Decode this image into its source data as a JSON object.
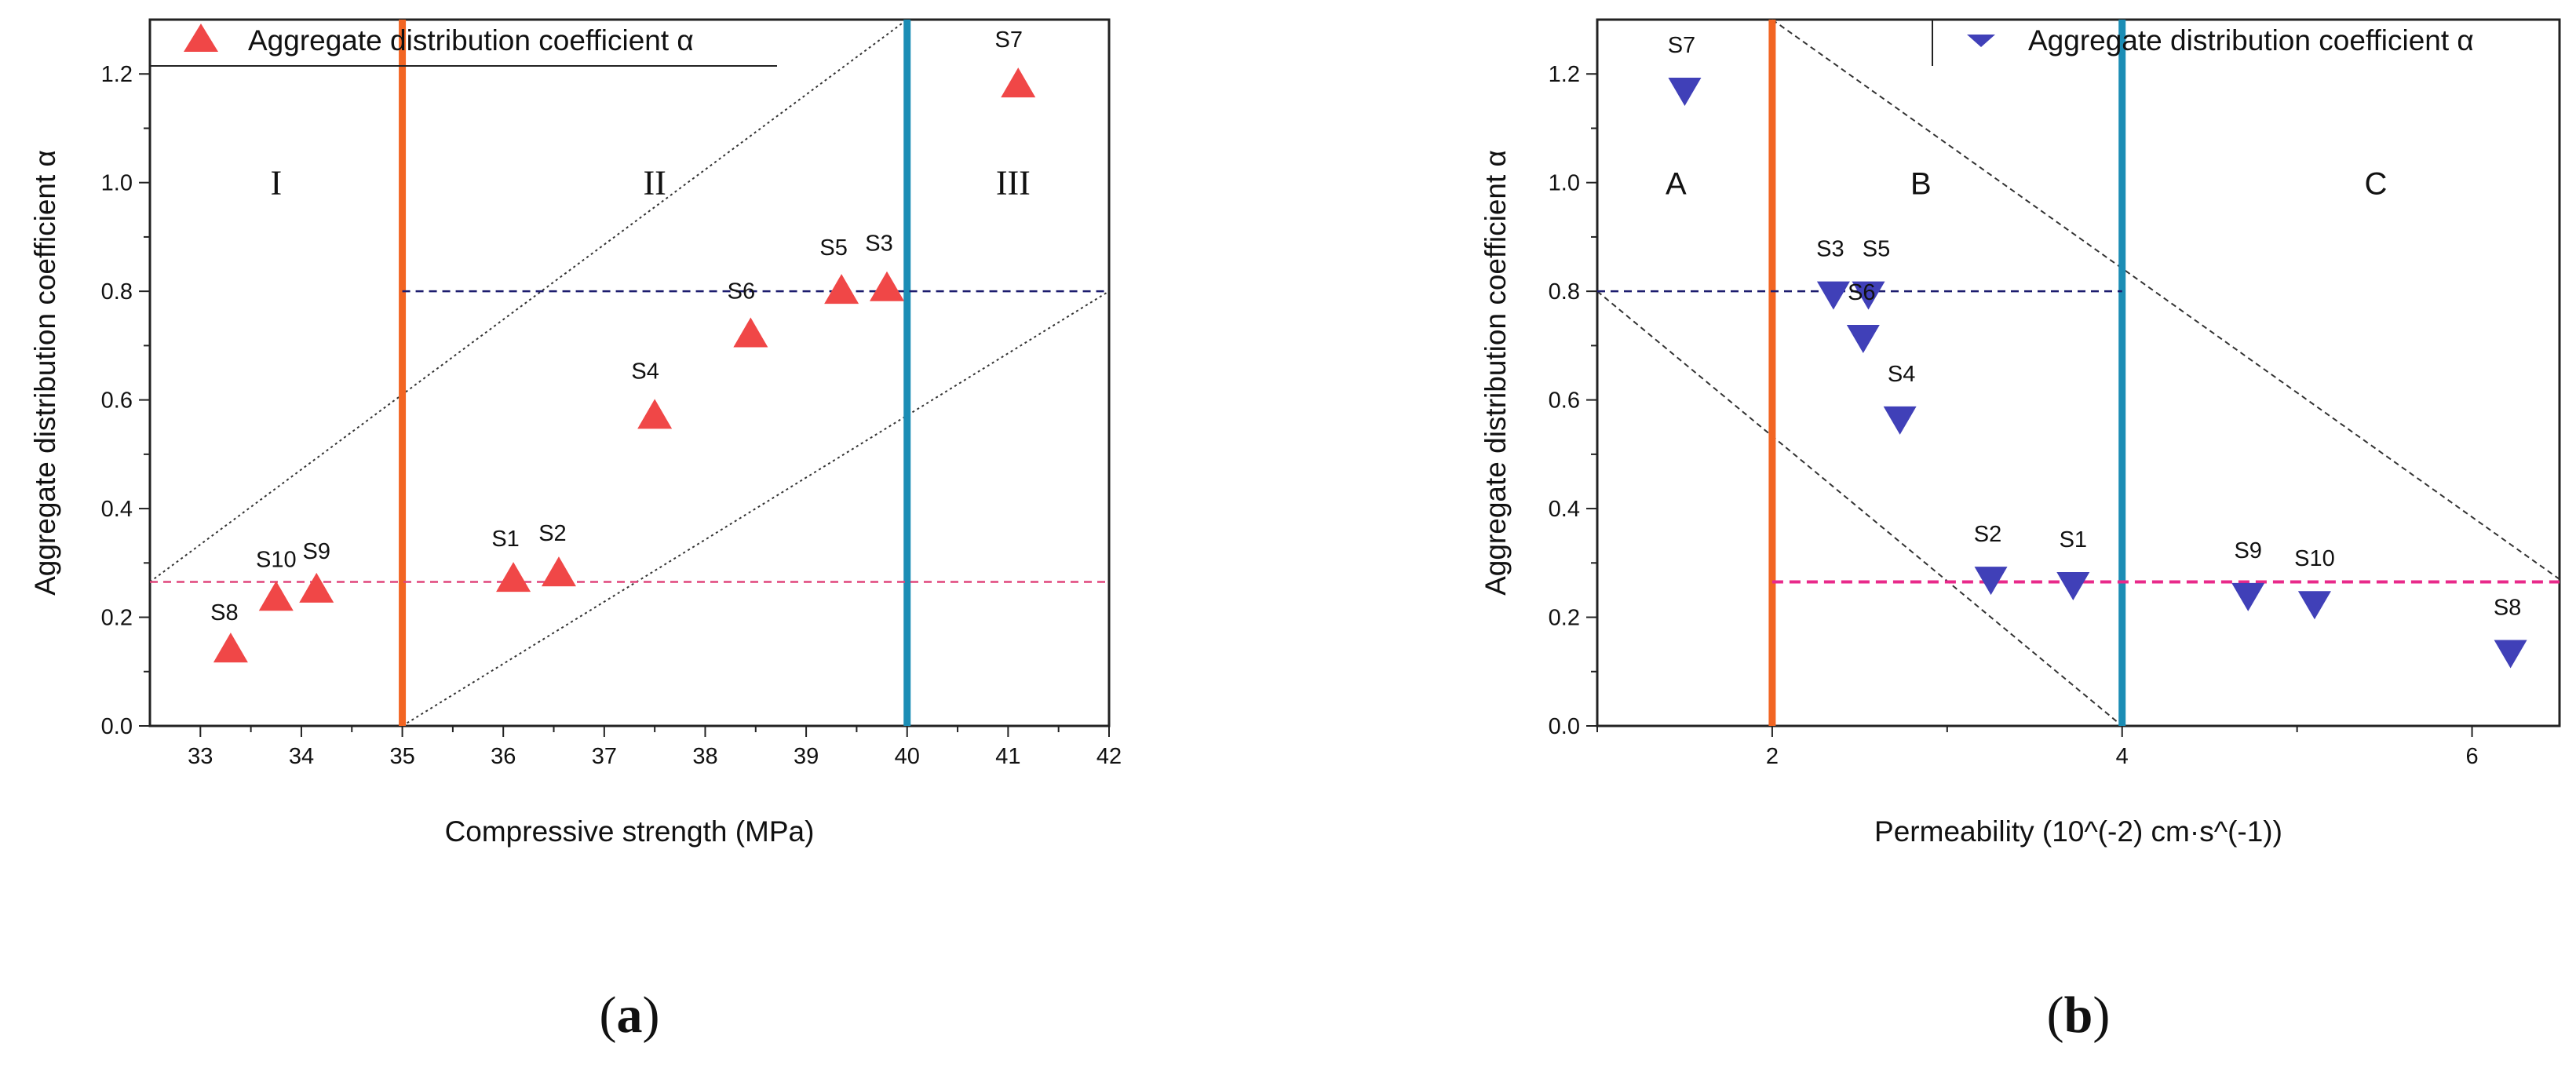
{
  "chart_data": [
    {
      "type": "scatter",
      "panel": "(a)",
      "panel_open": "(",
      "panel_letter": "a",
      "panel_close": ")",
      "title": "",
      "xlabel": "Compressive strength (MPa)",
      "ylabel": "Aggregate distribution coefficient α",
      "xlim": [
        32.5,
        42
      ],
      "ylim": [
        0,
        1.3
      ],
      "xticks": [
        33,
        34,
        35,
        36,
        37,
        38,
        39,
        40,
        41,
        42
      ],
      "xtick_labels": [
        "33",
        "34",
        "35",
        "36",
        "37",
        "38",
        "39",
        "40",
        "41",
        "42"
      ],
      "yticks": [
        0.0,
        0.2,
        0.4,
        0.6,
        0.8,
        1.0,
        1.2
      ],
      "ytick_labels": [
        "0.0",
        "0.2",
        "0.4",
        "0.6",
        "0.8",
        "1.0",
        "1.2"
      ],
      "legend": {
        "label": "Aggregate distribution coefficient α",
        "marker": "triangle-up",
        "color": "#f04747"
      },
      "series": [
        {
          "name": "Aggregate distribution coefficient α",
          "marker": "triangle-up",
          "color": "#f04747",
          "points": [
            {
              "label": "S8",
              "x": 33.3,
              "y": 0.14
            },
            {
              "label": "S10",
              "x": 33.75,
              "y": 0.235
            },
            {
              "label": "S9",
              "x": 34.15,
              "y": 0.25
            },
            {
              "label": "S1",
              "x": 36.1,
              "y": 0.27
            },
            {
              "label": "S2",
              "x": 36.55,
              "y": 0.28
            },
            {
              "label": "S4",
              "x": 37.5,
              "y": 0.57
            },
            {
              "label": "S6",
              "x": 38.45,
              "y": 0.72
            },
            {
              "label": "S5",
              "x": 39.35,
              "y": 0.8
            },
            {
              "label": "S3",
              "x": 39.8,
              "y": 0.805
            },
            {
              "label": "S7",
              "x": 41.1,
              "y": 1.18
            }
          ]
        }
      ],
      "vlines": [
        {
          "x": 35,
          "color": "#f26522"
        },
        {
          "x": 40,
          "color": "#1b8db5"
        }
      ],
      "hlines": [
        {
          "y": 0.8,
          "x_from": 35,
          "x_to": 42,
          "color": "#1c1c6e",
          "style": "dashed"
        },
        {
          "y": 0.265,
          "x_from": 32.5,
          "x_to": 42,
          "color": "#e0457b",
          "style": "dashed"
        }
      ],
      "guide_lines": [
        {
          "from": [
            32.5,
            0.265
          ],
          "to": [
            40,
            1.3
          ]
        },
        {
          "from": [
            35,
            0.0
          ],
          "to": [
            42,
            0.8
          ]
        }
      ],
      "regions": [
        {
          "label": "I",
          "x": 33.75,
          "y": 1.0
        },
        {
          "label": "II",
          "x": 37.5,
          "y": 1.0
        },
        {
          "label": "III",
          "x": 41.05,
          "y": 1.0
        }
      ]
    },
    {
      "type": "scatter",
      "panel": "(b)",
      "panel_open": "(",
      "panel_letter": "b",
      "panel_close": ")",
      "title": "",
      "xlabel": "Permeability (10^(-2) cm·s^(-1))",
      "ylabel": "Aggregate distribution coefficient α",
      "xlim": [
        1,
        6.5
      ],
      "ylim": [
        0,
        1.3
      ],
      "xticks": [
        2,
        4,
        6
      ],
      "xtick_labels": [
        "2",
        "4",
        "6"
      ],
      "xticks_minor": [
        1,
        3,
        5
      ],
      "yticks": [
        0.0,
        0.2,
        0.4,
        0.6,
        0.8,
        1.0,
        1.2
      ],
      "ytick_labels": [
        "0.0",
        "0.2",
        "0.4",
        "0.6",
        "0.8",
        "1.0",
        "1.2"
      ],
      "legend": {
        "label": "Aggregate distribution coefficient α",
        "marker": "triangle-down",
        "color": "#4040b8"
      },
      "series": [
        {
          "name": "Aggregate distribution coefficient α",
          "marker": "triangle-down",
          "color": "#4040b8",
          "points": [
            {
              "label": "S7",
              "x": 1.5,
              "y": 1.17
            },
            {
              "label": "S3",
              "x": 2.35,
              "y": 0.795
            },
            {
              "label": "S5",
              "x": 2.55,
              "y": 0.795
            },
            {
              "label": "S6",
              "x": 2.52,
              "y": 0.715
            },
            {
              "label": "S4",
              "x": 2.73,
              "y": 0.565
            },
            {
              "label": "S2",
              "x": 3.25,
              "y": 0.27
            },
            {
              "label": "S1",
              "x": 3.72,
              "y": 0.26
            },
            {
              "label": "S9",
              "x": 4.72,
              "y": 0.24
            },
            {
              "label": "S10",
              "x": 5.1,
              "y": 0.225
            },
            {
              "label": "S8",
              "x": 6.22,
              "y": 0.135
            }
          ]
        }
      ],
      "vlines": [
        {
          "x": 2,
          "color": "#f26522"
        },
        {
          "x": 4,
          "color": "#1b8db5"
        }
      ],
      "hlines": [
        {
          "y": 0.8,
          "x_from": 1,
          "x_to": 4,
          "color": "#1c1c6e",
          "style": "dashed"
        },
        {
          "y": 0.265,
          "x_from": 2,
          "x_to": 6.5,
          "color": "#e8298a",
          "style": "dashed"
        }
      ],
      "guide_lines": [
        {
          "from": [
            1,
            0.8
          ],
          "to": [
            4,
            0.0
          ]
        },
        {
          "from": [
            2,
            1.3
          ],
          "to": [
            6.5,
            0.27
          ]
        }
      ],
      "regions": [
        {
          "label": "A",
          "x": 1.45,
          "y": 1.0
        },
        {
          "label": "B",
          "x": 2.85,
          "y": 1.0
        },
        {
          "label": "C",
          "x": 5.45,
          "y": 1.0
        }
      ]
    }
  ]
}
